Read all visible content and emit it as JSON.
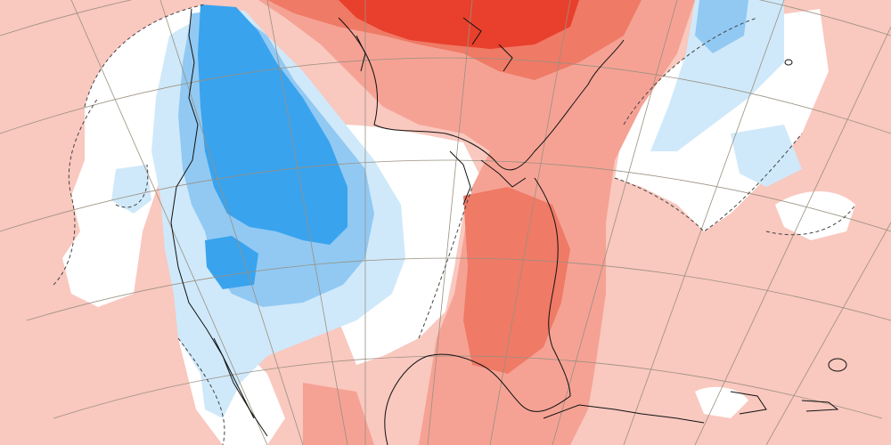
{
  "map": {
    "type": "temperature-anomaly-map",
    "legend": [],
    "colors": {
      "ocean_base": "#f9c8bf",
      "white": "#ffffff",
      "cold_light": "#cfe9fa",
      "cold_medium": "#91c9f3",
      "cold_strong": "#39a3ee",
      "warm_medium": "#f5a294",
      "warm_strong": "#ef7a66",
      "warm_extreme": "#e8402c",
      "coastline": "#111111",
      "graticule": "#9a9080",
      "contour": "#444444"
    }
  }
}
